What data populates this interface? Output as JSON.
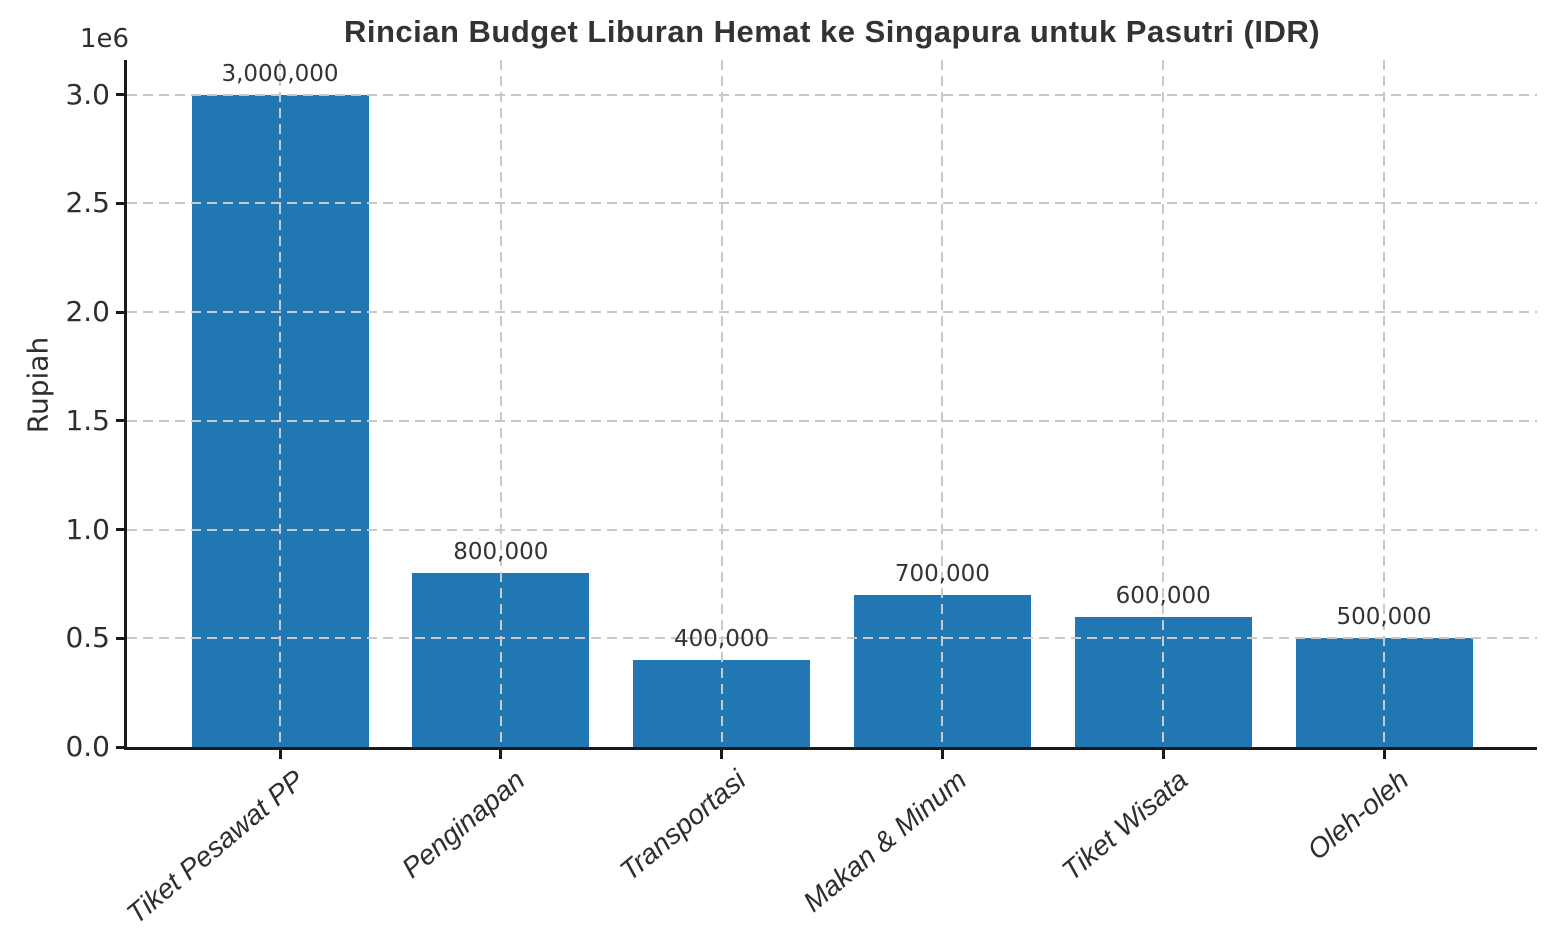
{
  "chart_data": {
    "type": "bar",
    "title": "Rincian Budget Liburan Hemat ke Singapura untuk Pasutri (IDR)",
    "xlabel": "",
    "ylabel": "Rupiah",
    "y_offset_label": "1e6",
    "categories": [
      "Tiket Pesawat PP",
      "Penginapan",
      "Transportasi",
      "Makan & Minum",
      "Tiket Wisata",
      "Oleh-oleh"
    ],
    "values": [
      3000000,
      800000,
      400000,
      700000,
      600000,
      500000
    ],
    "value_labels": [
      "3,000,000",
      "800,000",
      "400,000",
      "700,000",
      "600,000",
      "500,000"
    ],
    "ylim": [
      0,
      3160000
    ],
    "yticks": [
      0,
      500000,
      1000000,
      1500000,
      2000000,
      2500000,
      3000000
    ],
    "ytick_labels": [
      "0.0",
      "0.5",
      "1.0",
      "1.5",
      "2.0",
      "2.5",
      "3.0"
    ],
    "grid": true,
    "grid_style": "dashed",
    "legend": "none",
    "colors": {
      "bar": "#2077b4",
      "grid": "#c9c9c9",
      "axis": "#1a1a1a",
      "text": "#333333"
    }
  }
}
